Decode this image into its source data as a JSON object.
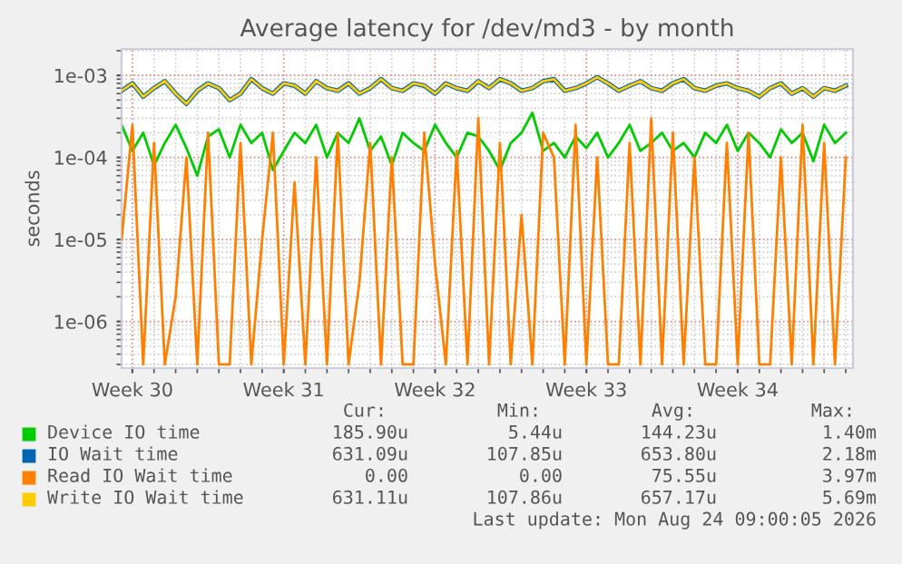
{
  "chart_data": {
    "type": "line",
    "title": "Average latency for /dev/md3 - by month",
    "ylabel": "seconds",
    "x": [
      "2026-07-19T12:00",
      "2026-07-20T00:00",
      "2026-07-20T12:00",
      "2026-07-21T00:00",
      "2026-07-21T12:00",
      "2026-07-22T00:00",
      "2026-07-22T12:00",
      "2026-07-23T00:00",
      "2026-07-23T12:00",
      "2026-07-24T00:00",
      "2026-07-24T12:00",
      "2026-07-25T00:00",
      "2026-07-25T12:00",
      "2026-07-26T00:00",
      "2026-07-26T12:00",
      "2026-07-27T00:00",
      "2026-07-27T12:00",
      "2026-07-28T00:00",
      "2026-07-28T12:00",
      "2026-07-29T00:00",
      "2026-07-29T12:00",
      "2026-07-30T00:00",
      "2026-07-30T12:00",
      "2026-07-31T00:00",
      "2026-07-31T12:00",
      "2026-08-01T00:00",
      "2026-08-01T12:00",
      "2026-08-02T00:00",
      "2026-08-02T12:00",
      "2026-08-03T00:00",
      "2026-08-03T12:00",
      "2026-08-04T00:00",
      "2026-08-04T12:00",
      "2026-08-05T00:00",
      "2026-08-05T12:00",
      "2026-08-06T00:00",
      "2026-08-06T12:00",
      "2026-08-07T00:00",
      "2026-08-07T12:00",
      "2026-08-08T00:00",
      "2026-08-08T12:00",
      "2026-08-09T00:00",
      "2026-08-09T12:00",
      "2026-08-10T00:00",
      "2026-08-10T12:00",
      "2026-08-11T00:00",
      "2026-08-11T12:00",
      "2026-08-12T00:00",
      "2026-08-12T12:00",
      "2026-08-13T00:00",
      "2026-08-13T12:00",
      "2026-08-14T00:00",
      "2026-08-14T12:00",
      "2026-08-15T00:00",
      "2026-08-15T12:00",
      "2026-08-16T00:00",
      "2026-08-16T12:00",
      "2026-08-17T00:00",
      "2026-08-17T12:00",
      "2026-08-18T00:00",
      "2026-08-18T12:00",
      "2026-08-19T00:00",
      "2026-08-19T12:00",
      "2026-08-20T00:00",
      "2026-08-20T12:00",
      "2026-08-21T00:00",
      "2026-08-21T12:00",
      "2026-08-22T00:00"
    ],
    "series": [
      {
        "name": "Device IO time",
        "color": "#00cc00",
        "values": [
          0.00025,
          0.00012,
          0.0002,
          8e-05,
          0.00015,
          0.00025,
          0.00013,
          6e-05,
          0.00018,
          0.00022,
          0.0001,
          0.00025,
          0.00015,
          0.0002,
          7e-05,
          0.00012,
          0.0002,
          0.00015,
          0.00025,
          0.0001,
          0.0002,
          0.00015,
          0.0003,
          0.00012,
          0.00018,
          8e-05,
          0.0002,
          0.00015,
          0.00012,
          0.00025,
          0.00015,
          0.0001,
          0.0002,
          0.00018,
          0.00012,
          7e-05,
          0.00015,
          0.0002,
          0.00035,
          0.00012,
          0.00015,
          0.0001,
          0.00018,
          0.00013,
          0.0002,
          0.0001,
          0.00015,
          0.00025,
          0.00012,
          0.00015,
          0.0002,
          0.00012,
          0.00015,
          0.0001,
          0.0002,
          0.00015,
          0.00025,
          0.00012,
          0.0002,
          0.00015,
          0.0001,
          0.00022,
          0.00015,
          0.0002,
          9e-05,
          0.00025,
          0.00015,
          0.0002
        ]
      },
      {
        "name": "IO Wait time",
        "color": "#0066b3",
        "values": [
          0.00065,
          0.0008,
          0.00055,
          0.0007,
          0.00085,
          0.0006,
          0.00045,
          0.00065,
          0.0008,
          0.0007,
          0.0005,
          0.0006,
          0.0009,
          0.0007,
          0.0006,
          0.0008,
          0.00075,
          0.0006,
          0.00085,
          0.0007,
          0.00065,
          0.0008,
          0.0006,
          0.0007,
          0.0009,
          0.0007,
          0.00065,
          0.0008,
          0.00075,
          0.0006,
          0.0008,
          0.0007,
          0.00065,
          0.00085,
          0.0007,
          0.0009,
          0.0008,
          0.00065,
          0.0007,
          0.00085,
          0.0009,
          0.00065,
          0.0007,
          0.0008,
          0.00095,
          0.0008,
          0.00065,
          0.00075,
          0.00085,
          0.0007,
          0.00065,
          0.0008,
          0.0009,
          0.0007,
          0.00065,
          0.00075,
          0.0008,
          0.0007,
          0.00065,
          0.00055,
          0.0007,
          0.0008,
          0.0006,
          0.0007,
          0.00055,
          0.0007,
          0.00065,
          0.00075
        ]
      },
      {
        "name": "Read IO Wait time",
        "color": "#ff8000",
        "values": [
          1e-05,
          0.00025,
          3e-07,
          0.00015,
          3e-07,
          2e-06,
          0.0001,
          3e-07,
          0.0002,
          3e-07,
          3e-07,
          0.00015,
          3e-07,
          1e-05,
          0.0002,
          3e-07,
          5e-05,
          3e-07,
          0.0001,
          3e-07,
          0.0002,
          3e-07,
          3e-06,
          0.00015,
          3e-07,
          0.0001,
          3e-07,
          3e-07,
          0.0002,
          5e-06,
          3e-07,
          0.00012,
          3e-07,
          0.0003,
          3e-07,
          0.00015,
          3e-07,
          2e-05,
          3e-07,
          0.0002,
          0.0001,
          3e-07,
          0.00025,
          3e-07,
          0.0001,
          3e-07,
          3e-07,
          0.00015,
          3e-07,
          0.0003,
          3e-07,
          0.0002,
          3e-07,
          0.0001,
          3e-07,
          3e-07,
          0.00015,
          3e-07,
          0.0002,
          3e-07,
          3e-07,
          0.0001,
          3e-07,
          0.00025,
          3e-07,
          0.00015,
          3e-07,
          0.0001
        ]
      },
      {
        "name": "Write IO Wait time",
        "color": "#ffcc00",
        "values": [
          0.00065,
          0.0008,
          0.00055,
          0.0007,
          0.00085,
          0.0006,
          0.00045,
          0.00065,
          0.0008,
          0.0007,
          0.0005,
          0.0006,
          0.0009,
          0.0007,
          0.0006,
          0.0008,
          0.00075,
          0.0006,
          0.00085,
          0.0007,
          0.00065,
          0.0008,
          0.0006,
          0.0007,
          0.0009,
          0.0007,
          0.00065,
          0.0008,
          0.00075,
          0.0006,
          0.0008,
          0.0007,
          0.00065,
          0.00085,
          0.0007,
          0.0009,
          0.0008,
          0.00065,
          0.0007,
          0.00085,
          0.0009,
          0.00065,
          0.0007,
          0.0008,
          0.00095,
          0.0008,
          0.00065,
          0.00075,
          0.00085,
          0.0007,
          0.00065,
          0.0008,
          0.0009,
          0.0007,
          0.00065,
          0.00075,
          0.0008,
          0.0007,
          0.00065,
          0.00055,
          0.0007,
          0.0008,
          0.0006,
          0.0007,
          0.00055,
          0.0007,
          0.00065,
          0.00075
        ]
      }
    ],
    "log": "y",
    "ylim": [
      2.7e-07,
      0.0021
    ],
    "yticks": [
      {
        "value": 1e-06,
        "label": "1e-06"
      },
      {
        "value": 1e-05,
        "label": "1e-05"
      },
      {
        "value": 0.0001,
        "label": "1e-04"
      },
      {
        "value": 0.001,
        "label": "1e-03"
      }
    ],
    "xlim": [
      "2026-07-19T12:00",
      "2026-08-22T08:00"
    ],
    "xticks": [
      {
        "value": "2026-07-20T00:00",
        "label": "Week 30"
      },
      {
        "value": "2026-07-27T00:00",
        "label": "Week 31"
      },
      {
        "value": "2026-08-03T00:00",
        "label": "Week 32"
      },
      {
        "value": "2026-08-10T00:00",
        "label": "Week 33"
      },
      {
        "value": "2026-08-17T00:00",
        "label": "Week 34"
      }
    ],
    "grid": true,
    "legend": "bottom",
    "marker": "none",
    "line_style": "solid",
    "annotations": [
      "Cur:",
      "Min:",
      "Avg:",
      "Max:",
      "185.90u",
      "5.44u",
      "144.23u",
      "1.40m",
      "631.09u",
      "107.85u",
      "653.80u",
      "2.18m",
      "0.00",
      "0.00",
      "75.55u",
      "3.97m",
      "631.11u",
      "107.86u",
      "657.17u",
      "5.69m",
      "Last update: Mon Aug 24 09:00:05 2026"
    ]
  }
}
